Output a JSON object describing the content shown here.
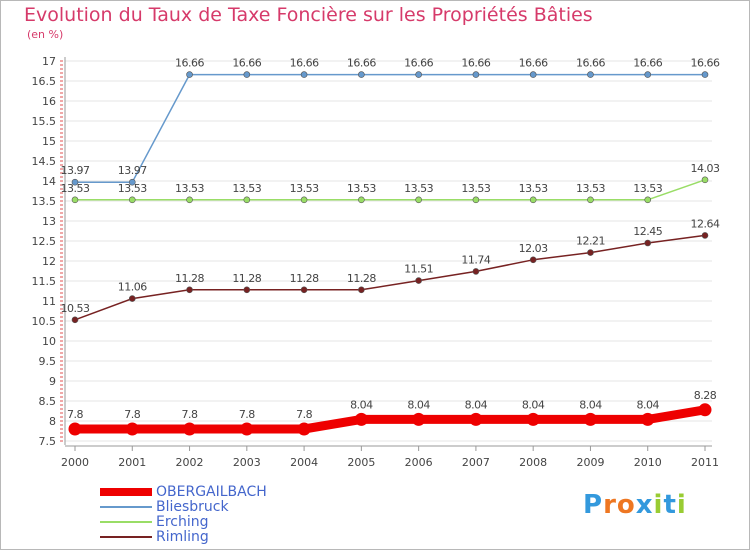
{
  "chart_data": {
    "type": "line",
    "title": "Evolution du Taux de Taxe Foncière sur les Propriétés Bâties",
    "ylabel": "(en %)",
    "xlabel": "",
    "ylim": [
      7.5,
      17
    ],
    "yticks": [
      "7.5",
      "8",
      "8.5",
      "9",
      "9.5",
      "10",
      "10.5",
      "11",
      "11.5",
      "12",
      "12.5",
      "13",
      "13.5",
      "14",
      "14.5",
      "15",
      "15.5",
      "16",
      "16.5",
      "17"
    ],
    "categories": [
      "2000",
      "2001",
      "2002",
      "2003",
      "2004",
      "2005",
      "2006",
      "2007",
      "2008",
      "2009",
      "2010",
      "2011"
    ],
    "series": [
      {
        "name": "OBERGAILBACH",
        "color": "#ee0000",
        "values": [
          7.8,
          7.8,
          7.8,
          7.8,
          7.8,
          8.04,
          8.04,
          8.04,
          8.04,
          8.04,
          8.04,
          8.28
        ],
        "labels": [
          "7.8",
          "7.8",
          "7.8",
          "7.8",
          "7.8",
          "8.04",
          "8.04",
          "8.04",
          "8.04",
          "8.04",
          "8.04",
          "8.28"
        ]
      },
      {
        "name": "Bliesbruck",
        "color": "#6699cc",
        "values": [
          13.97,
          13.97,
          16.66,
          16.66,
          16.66,
          16.66,
          16.66,
          16.66,
          16.66,
          16.66,
          16.66,
          16.66
        ],
        "labels": [
          "13.97",
          "13.97",
          "16.66",
          "16.66",
          "16.66",
          "16.66",
          "16.66",
          "16.66",
          "16.66",
          "16.66",
          "16.66",
          "16.66"
        ]
      },
      {
        "name": "Erching",
        "color": "#99dd66",
        "values": [
          13.53,
          13.53,
          13.53,
          13.53,
          13.53,
          13.53,
          13.53,
          13.53,
          13.53,
          13.53,
          13.53,
          14.03
        ],
        "labels": [
          "13.53",
          "13.53",
          "13.53",
          "13.53",
          "13.53",
          "13.53",
          "13.53",
          "13.53",
          "13.53",
          "13.53",
          "13.53",
          "14.03"
        ]
      },
      {
        "name": "Rimling",
        "color": "#772222",
        "values": [
          10.53,
          11.06,
          11.28,
          11.28,
          11.28,
          11.28,
          11.51,
          11.74,
          12.03,
          12.21,
          12.45,
          12.64
        ],
        "labels": [
          "10.53",
          "11.06",
          "11.28",
          "11.28",
          "11.28",
          "11.28",
          "11.51",
          "11.74",
          "12.03",
          "12.21",
          "12.45",
          "12.64"
        ]
      }
    ],
    "legend": [
      "OBERGAILBACH",
      "Bliesbruck",
      "Erching",
      "Rimling"
    ],
    "legend_position": "bottom-left"
  },
  "logo": {
    "text": "Proxiti",
    "letters": [
      "P",
      "r",
      "o",
      "x",
      "i",
      "t",
      "i"
    ],
    "colors": [
      "#3399dd",
      "#ee7722",
      "#ee7722",
      "#3399dd",
      "#99cc33",
      "#3399dd",
      "#99cc33"
    ]
  }
}
